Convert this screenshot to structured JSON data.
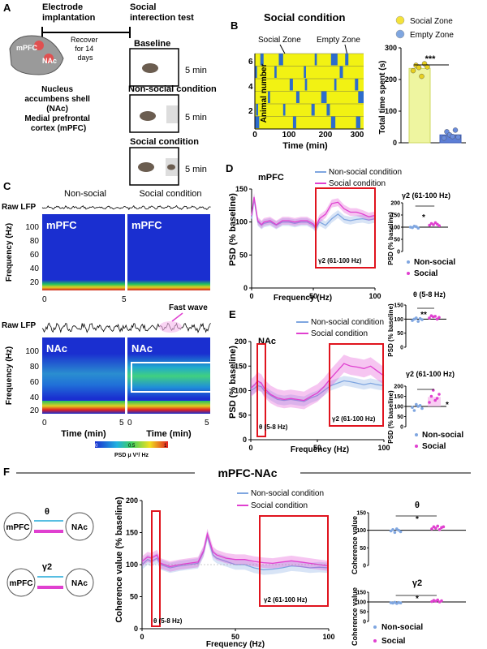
{
  "panels": {
    "A": {
      "letter": "A",
      "electrode": "Electrode\nimplantation",
      "social_test": "Social\ninterection test",
      "recover": "Recover\nfor 14\ndays",
      "brain_mpfc": "mPFC",
      "brain_nac": "NAc",
      "regions": "Nucleus\naccumbens shell\n(NAc)\nMedial prefrontal\ncortex (mPFC)",
      "conditions": [
        "Baseline",
        "Non-social condition",
        "Social condition"
      ],
      "duration": "5 min"
    },
    "B": {
      "letter": "B",
      "title": "Social condition",
      "social_zone": "Social Zone",
      "empty_zone": "Empty Zone",
      "ylabel": "Animal number",
      "xlabel": "Time (min)",
      "yticks": [
        "6",
        "4",
        "2"
      ],
      "xticks": [
        "0",
        "100",
        "200",
        "300"
      ],
      "bar_ylabel": "Total time spent (s)",
      "bar_yticks": [
        "0",
        "100",
        "200",
        "300"
      ],
      "sig": "***",
      "legend": [
        "Social Zone",
        "Empty Zone"
      ],
      "colors": {
        "social": "#f2f213",
        "empty": "#2d6ccc",
        "legend_social": "#f4e23a",
        "legend_empty": "#7fa6e0"
      }
    },
    "C": {
      "letter": "C",
      "nonsocial": "Non-social",
      "social": "Social condition",
      "raw_lfp": "Raw LFP",
      "fast_wave": "Fast wave",
      "mpfc": "mPFC",
      "nac": "NAc",
      "yticks_top": [
        "100",
        "80",
        "60",
        "40",
        "20"
      ],
      "yticks_bottom": [
        "100",
        "80",
        "60",
        "40",
        "20"
      ],
      "ylabel": "Frequency (Hz)",
      "xlabel": "Time (min)",
      "xticks": [
        "0",
        "5"
      ],
      "colorbar_label": "PSD μ V²/ Hz",
      "colorbar_ticks": [
        "0",
        "0.5",
        "1"
      ]
    },
    "D": {
      "letter": "D",
      "region": "mPFC",
      "legend": [
        "Non-social condition",
        "Social condition"
      ],
      "ylabel": "PSD (% baseline)",
      "xlabel": "Frequency (Hz)",
      "yticks": [
        "150",
        "100",
        "50",
        "0"
      ],
      "xticks": [
        "0",
        "50",
        "100"
      ],
      "gamma_label": "γ2  (61-100 Hz)",
      "inset_title": "γ2  (61-100 Hz)",
      "inset_yticks": [
        "200",
        "150",
        "100",
        "50",
        "0"
      ],
      "inset_ylabel": "PSD (% baseline)",
      "inset_sig": "*",
      "inset_legend": [
        "Non-social",
        "Social"
      ]
    },
    "E": {
      "letter": "E",
      "region": "NAc",
      "legend": [
        "Non-social condition",
        "Social condition"
      ],
      "ylabel": "PSD (% baseline)",
      "xlabel": "Frequency (Hz)",
      "yticks": [
        "200",
        "150",
        "100",
        "50",
        "0"
      ],
      "xticks": [
        "0",
        "50",
        "100"
      ],
      "theta_label": "θ  (5-8 Hz)",
      "gamma_label": "γ2  (61-100 Hz)",
      "inset1_title": "θ  (5-8 Hz)",
      "inset1_yticks": [
        "150",
        "100",
        "50",
        "0"
      ],
      "inset1_sig": "**",
      "inset2_title": "γ2  (61-100 Hz)",
      "inset2_yticks": [
        "200",
        "150",
        "100",
        "50",
        "0"
      ],
      "inset2_sig": "*",
      "inset_ylabel": "PSD (% baseline)",
      "inset_legend": [
        "Non-social",
        "Social"
      ]
    },
    "F": {
      "letter": "F",
      "title": "mPFC-NAc",
      "theta": "θ",
      "gamma": "γ2",
      "mpfc": "mPFC",
      "nac": "NAc",
      "legend": [
        "Non-social condition",
        "Social condition"
      ],
      "ylabel": "Coherence value (% baseline)",
      "xlabel": "Frequency (Hz)",
      "yticks": [
        "200",
        "150",
        "100",
        "50",
        "0"
      ],
      "xticks": [
        "0",
        "50",
        "100"
      ],
      "theta_label": "θ  (5-8 Hz)",
      "gamma_label": "γ2  (61-100 Hz)",
      "inset1_title": "θ",
      "inset1_yticks": [
        "150",
        "100",
        "50",
        "0"
      ],
      "inset1_sig": "*",
      "inset2_title": "γ2",
      "inset2_yticks": [
        "150",
        "100",
        "50",
        "0"
      ],
      "inset2_sig": "*",
      "inset_ylabel": "Coherence value",
      "inset_legend": [
        "Non-social",
        "Social"
      ]
    }
  },
  "colors": {
    "nonsocial": "#7fa6e0",
    "social": "#e040d0",
    "red_box": "#e0141e"
  },
  "chart_data": [
    {
      "type": "bar",
      "panel": "B",
      "categories": [
        "Social Zone",
        "Empty Zone"
      ],
      "values": [
        235,
        25
      ],
      "ylabel": "Total time spent (s)",
      "ylim": [
        0,
        300
      ]
    },
    {
      "type": "line",
      "panel": "D",
      "xlabel": "Frequency (Hz)",
      "ylabel": "PSD (% baseline)",
      "ylim": [
        0,
        150
      ],
      "xlim": [
        0,
        100
      ],
      "series": [
        {
          "name": "Non-social condition",
          "x": [
            0,
            2,
            5,
            8,
            10,
            15,
            20,
            25,
            30,
            35,
            40,
            45,
            50,
            52,
            55,
            60,
            65,
            70,
            75,
            80,
            85,
            90,
            95,
            100
          ],
          "values": [
            105,
            135,
            100,
            95,
            98,
            100,
            95,
            100,
            100,
            98,
            100,
            100,
            95,
            90,
            100,
            95,
            105,
            112,
            104,
            102,
            104,
            105,
            103,
            105
          ]
        },
        {
          "name": "Social condition",
          "x": [
            0,
            2,
            5,
            8,
            10,
            15,
            20,
            25,
            30,
            35,
            40,
            45,
            50,
            52,
            55,
            60,
            65,
            70,
            75,
            80,
            85,
            90,
            95,
            100
          ],
          "values": [
            110,
            138,
            102,
            96,
            100,
            102,
            96,
            102,
            102,
            100,
            102,
            102,
            97,
            92,
            105,
            112,
            128,
            130,
            120,
            115,
            115,
            112,
            108,
            110
          ]
        }
      ]
    },
    {
      "type": "line",
      "panel": "E",
      "xlabel": "Frequency (Hz)",
      "ylabel": "PSD (% baseline)",
      "ylim": [
        0,
        200
      ],
      "xlim": [
        0,
        100
      ],
      "series": [
        {
          "name": "Non-social condition",
          "x": [
            0,
            3,
            5,
            8,
            10,
            15,
            20,
            25,
            30,
            35,
            40,
            45,
            50,
            55,
            60,
            65,
            70,
            75,
            80,
            85,
            90,
            95,
            100
          ],
          "values": [
            100,
            105,
            110,
            108,
            100,
            90,
            82,
            80,
            82,
            80,
            78,
            85,
            90,
            100,
            110,
            115,
            120,
            118,
            115,
            112,
            115,
            112,
            110
          ]
        },
        {
          "name": "Social condition",
          "x": [
            0,
            3,
            5,
            8,
            10,
            15,
            20,
            25,
            30,
            35,
            40,
            45,
            50,
            55,
            60,
            65,
            70,
            75,
            80,
            85,
            90,
            95,
            100
          ],
          "values": [
            105,
            112,
            120,
            115,
            105,
            92,
            85,
            82,
            84,
            82,
            80,
            88,
            95,
            108,
            125,
            140,
            155,
            150,
            148,
            145,
            150,
            140,
            130
          ]
        }
      ]
    },
    {
      "type": "line",
      "panel": "F",
      "xlabel": "Frequency (Hz)",
      "ylabel": "Coherence value (% baseline)",
      "ylim": [
        0,
        200
      ],
      "xlim": [
        0,
        100
      ],
      "series": [
        {
          "name": "Non-social condition",
          "x": [
            0,
            3,
            5,
            8,
            10,
            15,
            20,
            25,
            30,
            33,
            35,
            38,
            40,
            45,
            50,
            55,
            60,
            65,
            70,
            75,
            80,
            85,
            90,
            95,
            100
          ],
          "values": [
            100,
            108,
            105,
            110,
            100,
            95,
            98,
            100,
            102,
            120,
            145,
            115,
            110,
            105,
            100,
            100,
            95,
            92,
            93,
            95,
            98,
            97,
            95,
            96,
            95
          ]
        },
        {
          "name": "Social condition",
          "x": [
            0,
            3,
            5,
            8,
            10,
            15,
            20,
            25,
            30,
            33,
            35,
            38,
            40,
            45,
            50,
            55,
            60,
            65,
            70,
            75,
            80,
            85,
            90,
            95,
            100
          ],
          "values": [
            105,
            112,
            110,
            115,
            102,
            97,
            100,
            102,
            104,
            122,
            148,
            120,
            115,
            110,
            108,
            108,
            105,
            103,
            102,
            104,
            106,
            104,
            102,
            100,
            98
          ]
        }
      ]
    }
  ]
}
